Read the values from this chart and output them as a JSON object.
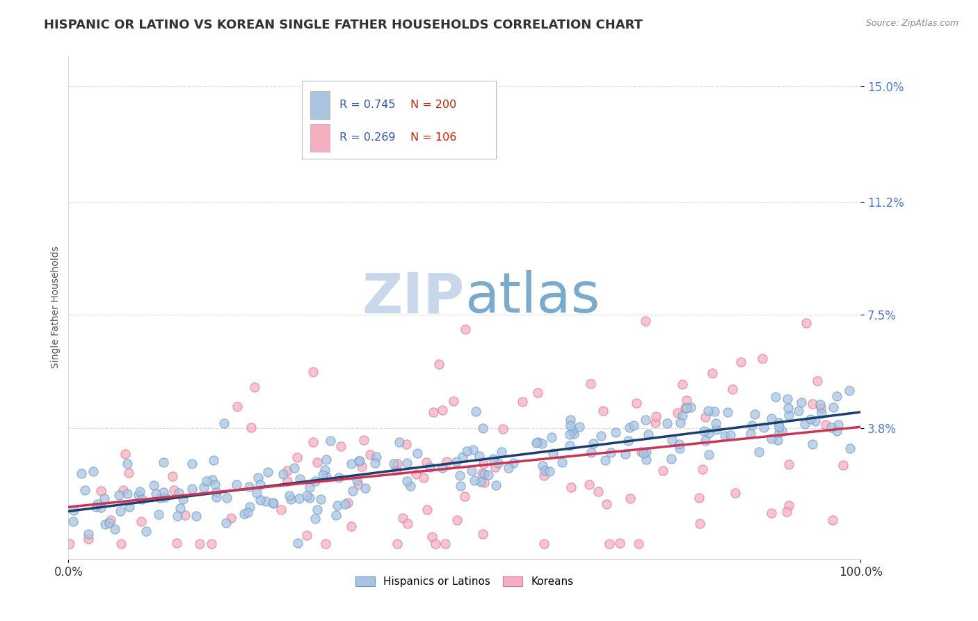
{
  "title": "HISPANIC OR LATINO VS KOREAN SINGLE FATHER HOUSEHOLDS CORRELATION CHART",
  "source_text": "Source: ZipAtlas.com",
  "ylabel": "Single Father Households",
  "watermark_zip": "ZIP",
  "watermark_atlas": "atlas",
  "blue_R": 0.745,
  "blue_N": 200,
  "pink_R": 0.269,
  "pink_N": 106,
  "blue_color": "#aac4e0",
  "blue_edge_color": "#6699cc",
  "blue_line_color": "#1a3f6f",
  "pink_color": "#f5b0c0",
  "pink_edge_color": "#e07090",
  "pink_line_color": "#cc3355",
  "ytick_labels": [
    "3.8%",
    "7.5%",
    "11.2%",
    "15.0%"
  ],
  "ytick_values": [
    0.038,
    0.075,
    0.112,
    0.15
  ],
  "xtick_labels": [
    "0.0%",
    "100.0%"
  ],
  "xtick_values": [
    0.0,
    1.0
  ],
  "xmin": 0.0,
  "xmax": 1.0,
  "ymin": -0.005,
  "ymax": 0.16,
  "legend_R_color": "#3355bb",
  "legend_N_color": "#cc2200",
  "title_fontsize": 13,
  "axis_label_fontsize": 10,
  "tick_fontsize": 12,
  "watermark_zip_fontsize": 58,
  "watermark_atlas_fontsize": 58,
  "watermark_zip_color": "#c8d8ea",
  "watermark_atlas_color": "#7aabcc",
  "background_color": "#ffffff",
  "grid_color": "#cccccc",
  "blue_seed": 42,
  "pink_seed": 7
}
